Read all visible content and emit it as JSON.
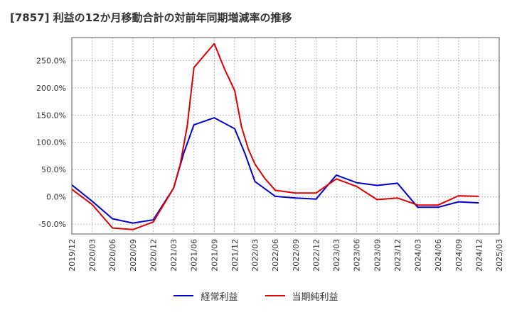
{
  "chart_data": {
    "type": "line",
    "title": "[7857]  利益の12か月移動合計の対前年同期増減率の推移",
    "x": [
      "2019/12",
      "2020/03",
      "2020/06",
      "2020/09",
      "2020/12",
      "2021/03",
      "2021/06",
      "2021/09",
      "2021/12",
      "2022/03",
      "2022/06",
      "2022/09",
      "2022/12",
      "2023/03",
      "2023/06",
      "2023/09",
      "2023/12",
      "2024/03",
      "2024/06",
      "2024/09",
      "2024/12",
      "2025/03"
    ],
    "y_ticks": [
      "250.0%",
      "200.0%",
      "150.0%",
      "100.0%",
      "50.0%",
      "0.0%",
      "-50.0%"
    ],
    "ylim": [
      -68,
      292
    ],
    "series": [
      {
        "name": "経常利益",
        "color": "#0000cc",
        "points": [
          [
            0,
            22
          ],
          [
            1,
            -8
          ],
          [
            2,
            -40
          ],
          [
            3,
            -48
          ],
          [
            4,
            -42
          ],
          [
            5,
            16
          ],
          [
            5.5,
            80
          ],
          [
            6,
            132
          ],
          [
            7,
            145
          ],
          [
            8,
            125
          ],
          [
            8.5,
            80
          ],
          [
            9,
            28
          ],
          [
            10,
            1
          ],
          [
            11,
            -2
          ],
          [
            12,
            -4
          ],
          [
            13,
            40
          ],
          [
            14,
            26
          ],
          [
            15,
            21
          ],
          [
            16,
            25
          ],
          [
            17,
            -19
          ],
          [
            18,
            -19
          ],
          [
            19,
            -9
          ],
          [
            20,
            -11
          ]
        ]
      },
      {
        "name": "当期純利益",
        "color": "#dd0000",
        "points": [
          [
            0,
            14
          ],
          [
            1,
            -14
          ],
          [
            2,
            -57
          ],
          [
            3,
            -60
          ],
          [
            4,
            -46
          ],
          [
            5,
            16
          ],
          [
            5.33,
            60
          ],
          [
            5.67,
            130
          ],
          [
            6,
            237
          ],
          [
            7,
            281
          ],
          [
            7.5,
            235
          ],
          [
            8,
            195
          ],
          [
            8.33,
            130
          ],
          [
            8.67,
            88
          ],
          [
            9,
            60
          ],
          [
            9.5,
            33
          ],
          [
            10,
            12
          ],
          [
            11,
            7
          ],
          [
            12,
            7
          ],
          [
            13,
            33
          ],
          [
            14,
            19
          ],
          [
            15,
            -5
          ],
          [
            16,
            -2
          ],
          [
            17,
            -15
          ],
          [
            18,
            -15
          ],
          [
            19,
            2
          ],
          [
            20,
            1
          ]
        ]
      }
    ]
  }
}
